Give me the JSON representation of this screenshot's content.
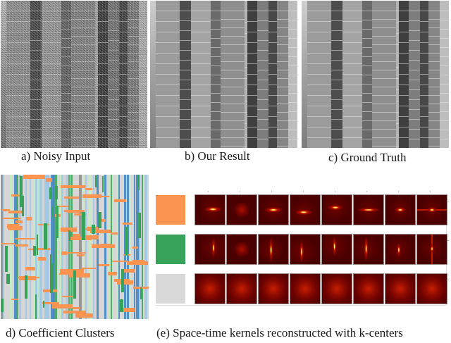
{
  "figure": {
    "top_row": [
      {
        "id": "a",
        "caption": "a) Noisy Input",
        "kind": "noisy-photo"
      },
      {
        "id": "b",
        "caption": "b) Our Result",
        "kind": "denoised-photo"
      },
      {
        "id": "c",
        "caption": "c) Ground Truth",
        "kind": "clean-photo"
      }
    ],
    "bottom_row": {
      "clusters": {
        "id": "d",
        "caption": "d) Coefficient Clusters"
      },
      "kernels": {
        "id": "e",
        "caption": "(e) Space-time kernels reconstructed with k-centers",
        "rows": [
          {
            "cluster_color": "#fa9450",
            "cluster_name": "orange",
            "orientation": "horizontal",
            "kernels": [
              "horizontal-offset",
              "diffuse-blob",
              "horizontal",
              "horizontal-low",
              "horizontal-high",
              "horizontal-wide",
              "horizontal-short",
              "cross-horizontal"
            ]
          },
          {
            "cluster_color": "#37a35a",
            "cluster_name": "green",
            "orientation": "vertical",
            "kernels": [
              "vertical-offset",
              "diffuse-blob",
              "vertical-long",
              "vertical-low",
              "vertical-high",
              "vertical-long-2",
              "vertical-short",
              "cross-vertical"
            ]
          },
          {
            "cluster_color": "#d9d9d9",
            "cluster_name": "gray",
            "orientation": "isotropic",
            "kernels": [
              "isotropic",
              "isotropic",
              "isotropic",
              "isotropic",
              "isotropic",
              "isotropic",
              "isotropic",
              "isotropic"
            ]
          }
        ]
      }
    },
    "cluster_palette": {
      "orange": "#fa9450",
      "green": "#37a35a",
      "blue": "#3c82c4",
      "light_blue": "#9ec8e6",
      "light_green": "#c6ecc0",
      "gray": "#8c8c8c",
      "light_gray": "#d6d6d6"
    },
    "kernel_colormap": {
      "low": "#4a0000",
      "mid": "#c81e00",
      "high": "#ffff60"
    }
  }
}
